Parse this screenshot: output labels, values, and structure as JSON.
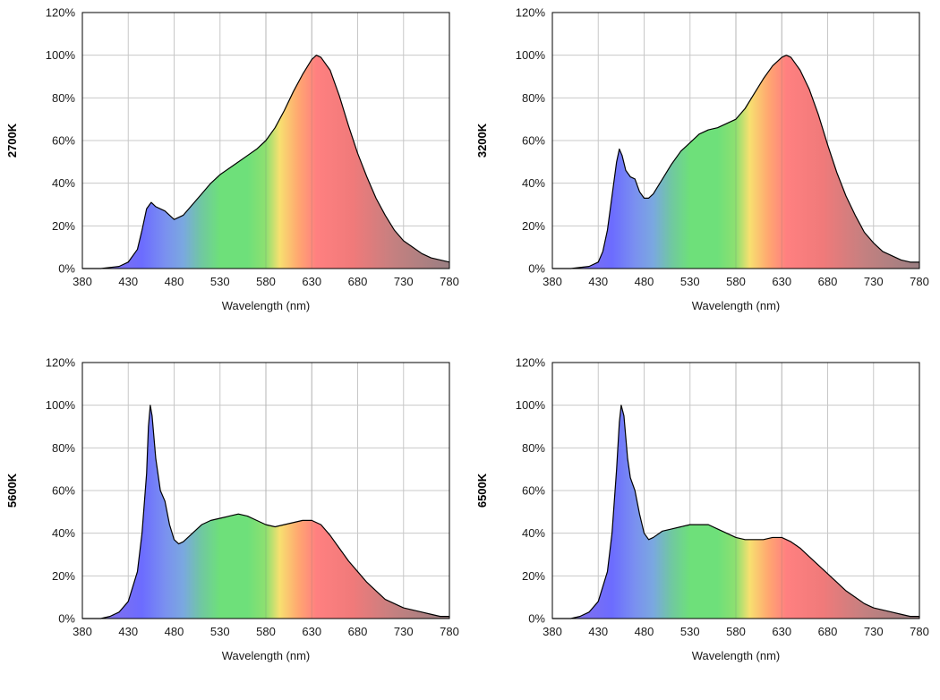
{
  "chart_data": [
    {
      "type": "area",
      "ylabel": "2700K",
      "xlabel": "Wavelength (nm)",
      "xlim": [
        380,
        780
      ],
      "ylim": [
        0,
        120
      ],
      "xticks": [
        "380",
        "430",
        "480",
        "530",
        "580",
        "630",
        "680",
        "730",
        "780"
      ],
      "yticks": [
        "0%",
        "20%",
        "40%",
        "60%",
        "80%",
        "100%",
        "120%"
      ],
      "grid": true,
      "x": [
        380,
        400,
        420,
        430,
        440,
        445,
        450,
        455,
        460,
        465,
        470,
        475,
        480,
        490,
        500,
        510,
        520,
        530,
        540,
        550,
        560,
        570,
        580,
        590,
        600,
        610,
        620,
        630,
        635,
        640,
        650,
        660,
        670,
        680,
        690,
        700,
        710,
        720,
        730,
        740,
        750,
        760,
        770,
        780
      ],
      "values": [
        0,
        0,
        1,
        3,
        9,
        18,
        28,
        31,
        29,
        28,
        27,
        25,
        23,
        25,
        30,
        35,
        40,
        44,
        47,
        50,
        53,
        56,
        60,
        66,
        74,
        83,
        91,
        98,
        100,
        99,
        93,
        81,
        67,
        54,
        43,
        33,
        25,
        18,
        13,
        10,
        7,
        5,
        4,
        3
      ]
    },
    {
      "type": "area",
      "ylabel": "3200K",
      "xlabel": "Wavelength (nm)",
      "xlim": [
        380,
        780
      ],
      "ylim": [
        0,
        120
      ],
      "xticks": [
        "380",
        "430",
        "480",
        "530",
        "580",
        "630",
        "680",
        "730",
        "780"
      ],
      "yticks": [
        "0%",
        "20%",
        "40%",
        "60%",
        "80%",
        "100%",
        "120%"
      ],
      "grid": true,
      "x": [
        380,
        400,
        420,
        430,
        435,
        440,
        445,
        450,
        453,
        456,
        460,
        465,
        470,
        475,
        480,
        485,
        490,
        500,
        510,
        520,
        530,
        540,
        550,
        560,
        570,
        580,
        590,
        600,
        610,
        620,
        630,
        635,
        640,
        650,
        660,
        670,
        680,
        690,
        700,
        710,
        720,
        730,
        740,
        750,
        760,
        770,
        780
      ],
      "values": [
        0,
        0,
        1,
        3,
        8,
        18,
        34,
        50,
        56,
        53,
        46,
        43,
        42,
        36,
        33,
        33,
        35,
        42,
        49,
        55,
        59,
        63,
        65,
        66,
        68,
        70,
        75,
        82,
        89,
        95,
        99,
        100,
        99,
        93,
        84,
        72,
        58,
        45,
        34,
        25,
        17,
        12,
        8,
        6,
        4,
        3,
        3
      ]
    },
    {
      "type": "area",
      "ylabel": "5600K",
      "xlabel": "Wavelength (nm)",
      "xlim": [
        380,
        780
      ],
      "ylim": [
        0,
        120
      ],
      "xticks": [
        "380",
        "430",
        "480",
        "530",
        "580",
        "630",
        "680",
        "730",
        "780"
      ],
      "yticks": [
        "0%",
        "20%",
        "40%",
        "60%",
        "80%",
        "100%",
        "120%"
      ],
      "grid": true,
      "x": [
        380,
        400,
        410,
        420,
        430,
        440,
        445,
        450,
        452,
        454,
        456,
        460,
        465,
        470,
        475,
        480,
        485,
        490,
        500,
        510,
        520,
        530,
        540,
        550,
        560,
        570,
        580,
        590,
        600,
        610,
        620,
        630,
        640,
        650,
        660,
        670,
        680,
        690,
        700,
        710,
        720,
        730,
        740,
        750,
        760,
        770,
        780
      ],
      "values": [
        0,
        0,
        1,
        3,
        8,
        22,
        40,
        68,
        90,
        100,
        95,
        75,
        60,
        55,
        44,
        37,
        35,
        36,
        40,
        44,
        46,
        47,
        48,
        49,
        48,
        46,
        44,
        43,
        44,
        45,
        46,
        46,
        44,
        39,
        33,
        27,
        22,
        17,
        13,
        9,
        7,
        5,
        4,
        3,
        2,
        1,
        1
      ]
    },
    {
      "type": "area",
      "ylabel": "6500K",
      "xlabel": "Wavelength (nm)",
      "xlim": [
        380,
        780
      ],
      "ylim": [
        0,
        120
      ],
      "xticks": [
        "380",
        "430",
        "480",
        "530",
        "580",
        "630",
        "680",
        "730",
        "780"
      ],
      "yticks": [
        "0%",
        "20%",
        "40%",
        "60%",
        "80%",
        "100%",
        "120%"
      ],
      "grid": true,
      "x": [
        380,
        400,
        410,
        420,
        430,
        440,
        445,
        450,
        453,
        455,
        458,
        462,
        465,
        470,
        475,
        480,
        485,
        490,
        500,
        510,
        520,
        530,
        540,
        550,
        560,
        570,
        580,
        590,
        600,
        610,
        620,
        630,
        640,
        650,
        660,
        670,
        680,
        690,
        700,
        710,
        720,
        730,
        740,
        750,
        760,
        770,
        780
      ],
      "values": [
        0,
        0,
        1,
        3,
        8,
        22,
        40,
        70,
        92,
        100,
        95,
        75,
        66,
        60,
        49,
        40,
        37,
        38,
        41,
        42,
        43,
        44,
        44,
        44,
        42,
        40,
        38,
        37,
        37,
        37,
        38,
        38,
        36,
        33,
        29,
        25,
        21,
        17,
        13,
        10,
        7,
        5,
        4,
        3,
        2,
        1,
        1
      ]
    }
  ]
}
